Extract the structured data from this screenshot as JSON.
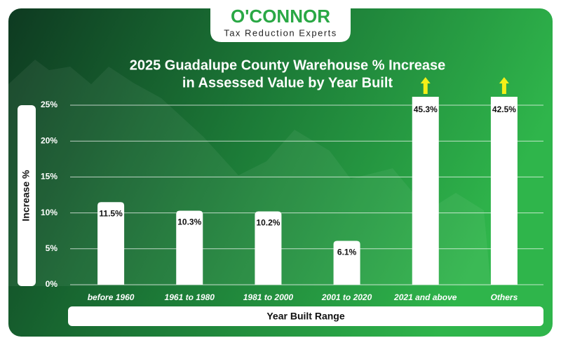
{
  "logo": {
    "name": "O'CONNOR",
    "tagline": "Tax Reduction Experts"
  },
  "chart_data": {
    "type": "bar",
    "title": [
      "2025 Guadalupe County Warehouse % Increase",
      "in Assessed Value by Year Built"
    ],
    "xlabel": "Year Built Range",
    "ylabel": "Increase %",
    "categories": [
      "before 1960",
      "1961 to 1980",
      "1981 to 2000",
      "2001 to 2020",
      "2021 and above",
      "Others"
    ],
    "values": [
      11.5,
      10.3,
      10.2,
      6.1,
      45.3,
      42.5
    ],
    "value_labels": [
      "11.5%",
      "10.3%",
      "10.2%",
      "6.1%",
      "45.3%",
      "42.5%"
    ],
    "color": "#ffffff",
    "ylim": [
      0,
      25
    ],
    "yticks": [
      {
        "value": 0,
        "label": "0%"
      },
      {
        "value": 5,
        "label": "5%"
      },
      {
        "value": 10,
        "label": "10%"
      },
      {
        "value": 15,
        "label": "15%"
      },
      {
        "value": 20,
        "label": "20%"
      },
      {
        "value": 25,
        "label": "25%"
      }
    ],
    "grid": true
  }
}
